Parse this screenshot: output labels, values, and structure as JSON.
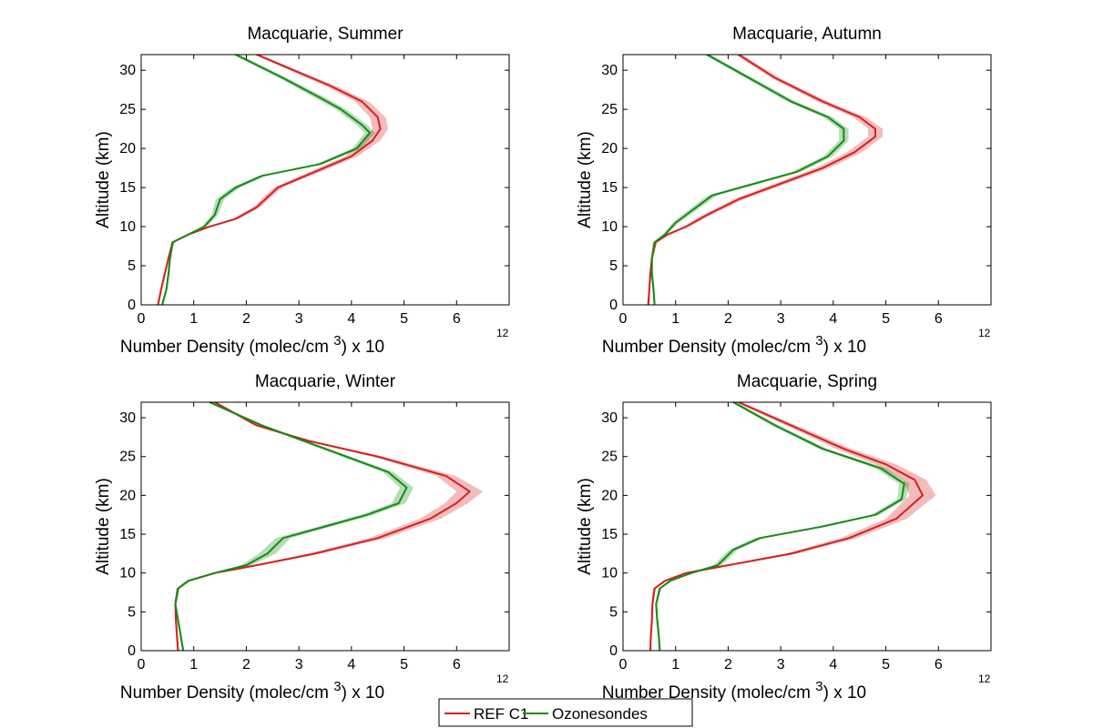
{
  "legend": {
    "items": [
      {
        "label": "REF C1",
        "color": "#d62020"
      },
      {
        "label": "Ozonesondes",
        "color": "#148c14"
      }
    ]
  },
  "chart_data": [
    {
      "type": "line",
      "title": "Macquarie, Summer",
      "xlabel": "Number Density (molec/cm",
      "xlabel_sup": "3",
      "xlabel_suffix": ") x 10",
      "xlabel_exp": "12",
      "ylabel": "Altitude (km)",
      "xlim": [
        0,
        7
      ],
      "ylim": [
        0,
        32
      ],
      "xticks": [
        "0",
        "1",
        "2",
        "3",
        "4",
        "5",
        "6"
      ],
      "yticks": [
        "0",
        "5",
        "10",
        "15",
        "20",
        "25",
        "30"
      ],
      "grid": false,
      "series": [
        {
          "name": "REF C1",
          "color": "#d62020",
          "x": [
            0.32,
            0.38,
            0.45,
            0.52,
            0.6,
            0.9,
            1.3,
            1.8,
            2.2,
            2.6,
            3.3,
            4.0,
            4.4,
            4.55,
            4.5,
            4.2,
            3.6,
            2.9,
            2.2
          ],
          "y": [
            0,
            2,
            4,
            6,
            8,
            9,
            10,
            11,
            12.5,
            15,
            17,
            19,
            21,
            22.5,
            24,
            26,
            28,
            30,
            32
          ],
          "spread": [
            0.02,
            0.02,
            0.02,
            0.02,
            0.03,
            0.04,
            0.05,
            0.06,
            0.07,
            0.08,
            0.1,
            0.12,
            0.15,
            0.15,
            0.15,
            0.13,
            0.1,
            0.08,
            0.06
          ]
        },
        {
          "name": "Ozonesondes",
          "color": "#148c14",
          "x": [
            0.4,
            0.48,
            0.52,
            0.55,
            0.6,
            0.9,
            1.2,
            1.4,
            1.5,
            1.8,
            2.3,
            3.4,
            4.1,
            4.35,
            4.2,
            3.8,
            3.4,
            2.7,
            1.8
          ],
          "y": [
            0,
            2,
            4,
            6,
            8,
            9,
            10,
            11.5,
            13.5,
            15,
            16.5,
            18,
            20,
            22,
            23,
            25,
            26.5,
            29,
            32
          ],
          "spread": [
            0.02,
            0.02,
            0.02,
            0.02,
            0.03,
            0.04,
            0.05,
            0.06,
            0.08,
            0.08,
            0.07,
            0.07,
            0.08,
            0.1,
            0.1,
            0.1,
            0.1,
            0.08,
            0.06
          ]
        }
      ]
    },
    {
      "type": "line",
      "title": "Macquarie, Autumn",
      "xlabel": "Number Density (molec/cm",
      "xlabel_sup": "3",
      "xlabel_suffix": ") x 10",
      "xlabel_exp": "12",
      "ylabel": "Altitude (km)",
      "xlim": [
        0,
        7
      ],
      "ylim": [
        0,
        32
      ],
      "xticks": [
        "0",
        "1",
        "2",
        "3",
        "4",
        "5",
        "6"
      ],
      "yticks": [
        "0",
        "5",
        "10",
        "15",
        "20",
        "25",
        "30"
      ],
      "grid": false,
      "series": [
        {
          "name": "REF C1",
          "color": "#d62020",
          "x": [
            0.48,
            0.5,
            0.52,
            0.55,
            0.62,
            0.85,
            1.2,
            1.6,
            2.2,
            3.0,
            3.8,
            4.4,
            4.8,
            4.8,
            4.5,
            3.8,
            2.9,
            2.2
          ],
          "y": [
            0,
            2,
            4,
            6,
            8,
            9,
            10,
            11.5,
            13.5,
            15.5,
            17.5,
            19.5,
            21.5,
            22.5,
            24,
            26,
            29,
            32
          ],
          "spread": [
            0.02,
            0.02,
            0.02,
            0.02,
            0.03,
            0.04,
            0.06,
            0.08,
            0.1,
            0.12,
            0.13,
            0.14,
            0.14,
            0.14,
            0.12,
            0.1,
            0.08,
            0.06
          ]
        },
        {
          "name": "Ozonesondes",
          "color": "#148c14",
          "x": [
            0.6,
            0.58,
            0.55,
            0.55,
            0.6,
            0.8,
            1.0,
            1.3,
            1.7,
            2.5,
            3.3,
            3.9,
            4.2,
            4.2,
            3.9,
            3.2,
            2.4,
            1.6
          ],
          "y": [
            0,
            2,
            4,
            6,
            8,
            9,
            10.5,
            12,
            14,
            15.5,
            17,
            19,
            21,
            22.5,
            24,
            26,
            29,
            32
          ],
          "spread": [
            0.02,
            0.02,
            0.02,
            0.02,
            0.03,
            0.04,
            0.06,
            0.08,
            0.09,
            0.09,
            0.09,
            0.09,
            0.09,
            0.09,
            0.09,
            0.08,
            0.07,
            0.06
          ]
        }
      ]
    },
    {
      "type": "line",
      "title": "Macquarie, Winter",
      "xlabel": "Number Density (molec/cm",
      "xlabel_sup": "3",
      "xlabel_suffix": ") x 10",
      "xlabel_exp": "12",
      "ylabel": "Altitude (km)",
      "xlim": [
        0,
        7
      ],
      "ylim": [
        0,
        32
      ],
      "xticks": [
        "0",
        "1",
        "2",
        "3",
        "4",
        "5",
        "6"
      ],
      "yticks": [
        "0",
        "5",
        "10",
        "15",
        "20",
        "25",
        "30"
      ],
      "grid": false,
      "series": [
        {
          "name": "REF C1",
          "color": "#d62020",
          "x": [
            0.7,
            0.68,
            0.66,
            0.65,
            0.7,
            0.9,
            1.4,
            2.2,
            3.3,
            4.5,
            5.5,
            6.0,
            6.25,
            5.8,
            4.5,
            3.2,
            2.2,
            1.4
          ],
          "y": [
            0,
            2,
            4,
            6,
            8,
            9,
            10,
            11,
            12.5,
            14.5,
            17,
            19,
            20.5,
            22.5,
            25,
            27,
            29,
            32
          ],
          "spread": [
            0.02,
            0.02,
            0.02,
            0.02,
            0.03,
            0.04,
            0.06,
            0.08,
            0.12,
            0.16,
            0.2,
            0.22,
            0.25,
            0.18,
            0.1,
            0.07,
            0.05,
            0.04
          ]
        },
        {
          "name": "Ozonesondes",
          "color": "#148c14",
          "x": [
            0.8,
            0.75,
            0.7,
            0.65,
            0.7,
            0.9,
            1.4,
            2.0,
            2.4,
            2.7,
            3.5,
            4.3,
            4.9,
            5.05,
            4.7,
            3.5,
            2.3,
            1.3
          ],
          "y": [
            0,
            2,
            4,
            6,
            8,
            9,
            10,
            11,
            12.5,
            14.5,
            16,
            17.5,
            19,
            21,
            23,
            26,
            29,
            32
          ],
          "spread": [
            0.02,
            0.02,
            0.02,
            0.02,
            0.03,
            0.04,
            0.06,
            0.1,
            0.16,
            0.14,
            0.12,
            0.12,
            0.13,
            0.13,
            0.1,
            0.08,
            0.06,
            0.04
          ]
        }
      ]
    },
    {
      "type": "line",
      "title": "Macquarie, Spring",
      "xlabel": "Number Density (molec/cm",
      "xlabel_sup": "3",
      "xlabel_suffix": ") x 10",
      "xlabel_exp": "12",
      "ylabel": "Altitude (km)",
      "xlim": [
        0,
        7
      ],
      "ylim": [
        0,
        32
      ],
      "xticks": [
        "0",
        "1",
        "2",
        "3",
        "4",
        "5",
        "6"
      ],
      "yticks": [
        "0",
        "5",
        "10",
        "15",
        "20",
        "25",
        "30"
      ],
      "grid": false,
      "series": [
        {
          "name": "REF C1",
          "color": "#d62020",
          "x": [
            0.52,
            0.53,
            0.55,
            0.56,
            0.6,
            0.8,
            1.2,
            2.0,
            3.2,
            4.3,
            5.2,
            5.7,
            5.55,
            5.0,
            4.2,
            3.2,
            2.2
          ],
          "y": [
            0,
            2,
            4,
            6,
            8,
            9,
            10,
            11,
            12.5,
            14.5,
            17,
            20,
            22,
            24,
            26,
            29,
            32
          ],
          "spread": [
            0.02,
            0.02,
            0.02,
            0.02,
            0.03,
            0.04,
            0.06,
            0.08,
            0.12,
            0.16,
            0.2,
            0.25,
            0.22,
            0.2,
            0.15,
            0.1,
            0.06
          ]
        },
        {
          "name": "Ozonesondes",
          "color": "#148c14",
          "x": [
            0.7,
            0.68,
            0.65,
            0.63,
            0.7,
            0.9,
            1.3,
            1.8,
            2.1,
            2.6,
            3.8,
            4.8,
            5.3,
            5.35,
            4.9,
            3.8,
            2.9,
            2.1
          ],
          "y": [
            0,
            2,
            4,
            6,
            8,
            9,
            10,
            11,
            13,
            14.5,
            16,
            17.5,
            19.5,
            21.5,
            23.5,
            26,
            29,
            32
          ],
          "spread": [
            0.02,
            0.02,
            0.02,
            0.02,
            0.03,
            0.04,
            0.06,
            0.08,
            0.08,
            0.08,
            0.08,
            0.08,
            0.08,
            0.1,
            0.1,
            0.08,
            0.07,
            0.05
          ]
        }
      ]
    }
  ]
}
